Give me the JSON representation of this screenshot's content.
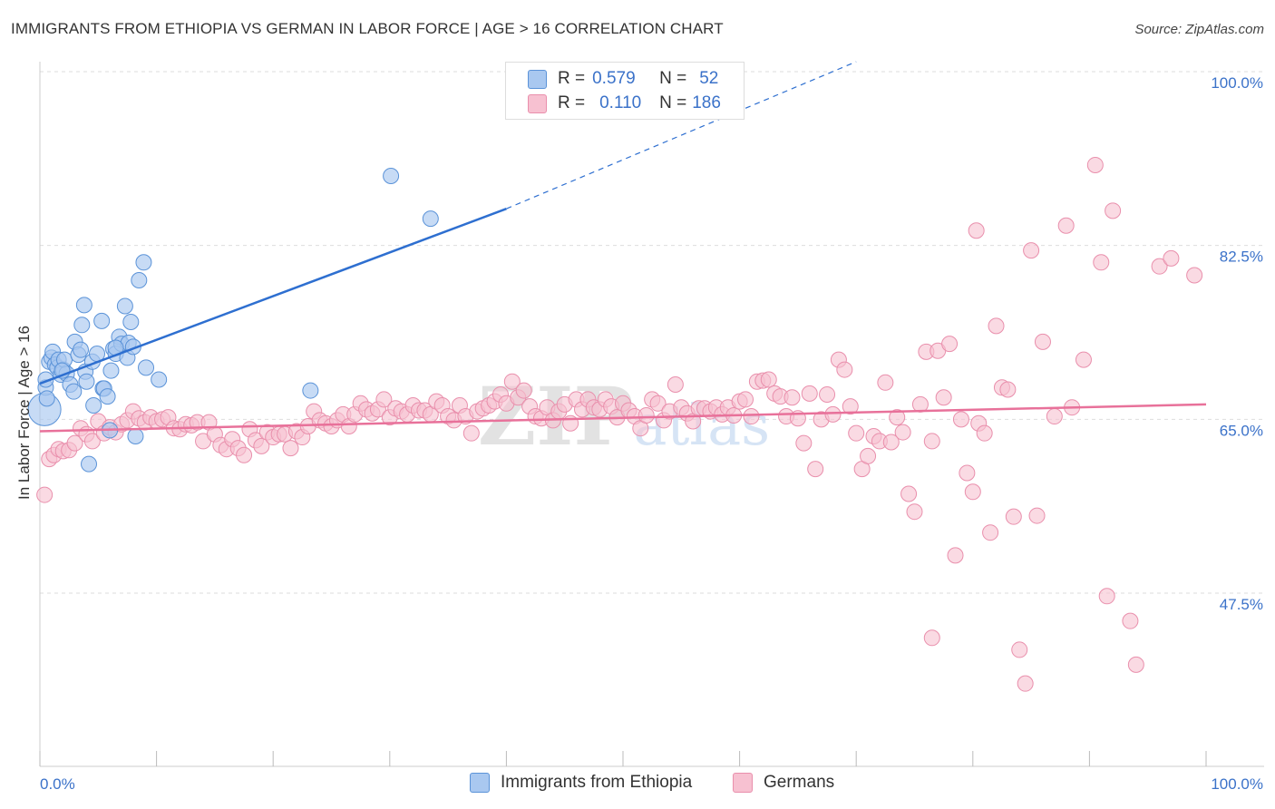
{
  "header": {
    "title": "IMMIGRANTS FROM ETHIOPIA VS GERMAN IN LABOR FORCE | AGE > 16 CORRELATION CHART",
    "source": "Source: ZipAtlas.com"
  },
  "legend": {
    "r_label": "R =",
    "n_label": "N =",
    "series": [
      {
        "r": "0.579",
        "n": "52"
      },
      {
        "r": "0.110",
        "n": "186"
      }
    ]
  },
  "watermark": "ZIPatlas",
  "colors": {
    "blue_fill": "#a9c8f0",
    "blue_stroke": "#5b93d8",
    "blue_line": "#2e6fd0",
    "pink_fill": "#f7c1d1",
    "pink_stroke": "#e98fac",
    "pink_line": "#e8719a",
    "tick_label": "#3b72c9",
    "grid": "#dddddd"
  },
  "chart_data": {
    "type": "scatter",
    "xlabel": "",
    "ylabel": "In Labor Force | Age > 16",
    "xlim": [
      0,
      100
    ],
    "ylim": [
      30,
      100
    ],
    "x_tick_labels": [
      "0.0%",
      "100.0%"
    ],
    "y_ticks": [
      47.5,
      65.0,
      82.5,
      100.0
    ],
    "y_tick_labels": [
      "47.5%",
      "65.0%",
      "82.5%",
      "100.0%"
    ],
    "grid": true,
    "legend_position": "top-center",
    "series": [
      {
        "name": "Immigrants from Ethiopia",
        "color": "#a9c8f0",
        "trend": {
          "x": [
            0,
            40
          ],
          "y": [
            68.6,
            86.2
          ],
          "dashed_to": [
            70,
            101.0
          ]
        },
        "points": [
          [
            0.4,
            66.0
          ],
          [
            0.5,
            68.2
          ],
          [
            0.5,
            69.0
          ],
          [
            0.6,
            67.1
          ],
          [
            0.8,
            70.8
          ],
          [
            1.0,
            71.2
          ],
          [
            1.1,
            71.8
          ],
          [
            1.3,
            70.5
          ],
          [
            1.5,
            70.2
          ],
          [
            1.6,
            71.0
          ],
          [
            1.8,
            69.5
          ],
          [
            2.0,
            70.0
          ],
          [
            2.1,
            71.0
          ],
          [
            2.3,
            69.6
          ],
          [
            2.6,
            68.5
          ],
          [
            2.9,
            67.8
          ],
          [
            3.0,
            72.8
          ],
          [
            3.3,
            71.5
          ],
          [
            3.5,
            72.0
          ],
          [
            3.6,
            74.5
          ],
          [
            3.8,
            76.5
          ],
          [
            3.9,
            69.8
          ],
          [
            4.2,
            60.5
          ],
          [
            4.5,
            70.8
          ],
          [
            4.6,
            66.4
          ],
          [
            4.9,
            71.6
          ],
          [
            5.3,
            74.9
          ],
          [
            5.4,
            68.1
          ],
          [
            5.5,
            68.1
          ],
          [
            5.8,
            67.3
          ],
          [
            6.0,
            63.9
          ],
          [
            6.1,
            69.9
          ],
          [
            6.3,
            72.1
          ],
          [
            6.5,
            71.6
          ],
          [
            6.8,
            73.3
          ],
          [
            7.0,
            72.6
          ],
          [
            7.3,
            76.4
          ],
          [
            7.5,
            71.2
          ],
          [
            7.6,
            72.7
          ],
          [
            7.8,
            74.8
          ],
          [
            8.0,
            72.3
          ],
          [
            8.2,
            63.3
          ],
          [
            8.5,
            79.0
          ],
          [
            8.9,
            80.8
          ],
          [
            9.1,
            70.2
          ],
          [
            10.2,
            69.0
          ],
          [
            23.2,
            67.9
          ],
          [
            30.1,
            89.5
          ],
          [
            33.5,
            85.2
          ],
          [
            6.5,
            72.2
          ],
          [
            4.0,
            68.8
          ],
          [
            1.9,
            69.9
          ]
        ]
      },
      {
        "name": "Germans",
        "color": "#f7c1d1",
        "trend": {
          "x": [
            0,
            100
          ],
          "y": [
            63.8,
            66.5
          ]
        },
        "points": [
          [
            0.4,
            57.4
          ],
          [
            0.8,
            61.0
          ],
          [
            1.2,
            61.4
          ],
          [
            1.6,
            62.0
          ],
          [
            2.0,
            61.8
          ],
          [
            2.5,
            61.9
          ],
          [
            3.0,
            62.6
          ],
          [
            3.5,
            64.1
          ],
          [
            4.0,
            63.5
          ],
          [
            4.5,
            62.8
          ],
          [
            5.0,
            64.8
          ],
          [
            5.5,
            63.6
          ],
          [
            6.0,
            64.2
          ],
          [
            6.5,
            63.7
          ],
          [
            7.0,
            64.5
          ],
          [
            7.5,
            64.9
          ],
          [
            8.0,
            65.8
          ],
          [
            8.5,
            65.1
          ],
          [
            9.0,
            64.7
          ],
          [
            9.5,
            65.2
          ],
          [
            10.0,
            64.8
          ],
          [
            10.5,
            65.0
          ],
          [
            11.0,
            65.2
          ],
          [
            11.5,
            64.1
          ],
          [
            12.0,
            64.0
          ],
          [
            12.5,
            64.5
          ],
          [
            13.0,
            64.4
          ],
          [
            13.5,
            64.7
          ],
          [
            14.0,
            62.8
          ],
          [
            14.5,
            64.7
          ],
          [
            15.0,
            63.5
          ],
          [
            15.5,
            62.4
          ],
          [
            16.0,
            62.0
          ],
          [
            16.5,
            63.0
          ],
          [
            17.0,
            62.1
          ],
          [
            17.5,
            61.4
          ],
          [
            18.0,
            64.0
          ],
          [
            18.5,
            62.9
          ],
          [
            19.0,
            62.3
          ],
          [
            19.5,
            63.7
          ],
          [
            20.0,
            63.2
          ],
          [
            20.5,
            63.5
          ],
          [
            21.0,
            63.5
          ],
          [
            21.5,
            62.1
          ],
          [
            22.0,
            63.8
          ],
          [
            22.5,
            63.2
          ],
          [
            23.0,
            64.3
          ],
          [
            23.5,
            65.8
          ],
          [
            24.0,
            64.9
          ],
          [
            24.5,
            64.6
          ],
          [
            25.0,
            64.3
          ],
          [
            25.5,
            64.9
          ],
          [
            26.0,
            65.5
          ],
          [
            26.5,
            64.3
          ],
          [
            27.0,
            65.5
          ],
          [
            27.5,
            66.6
          ],
          [
            28.0,
            66.0
          ],
          [
            28.5,
            65.6
          ],
          [
            29.0,
            66.0
          ],
          [
            29.5,
            67.0
          ],
          [
            30.0,
            65.2
          ],
          [
            30.5,
            66.1
          ],
          [
            31.0,
            65.8
          ],
          [
            31.5,
            65.5
          ],
          [
            32.0,
            66.4
          ],
          [
            32.5,
            65.9
          ],
          [
            33.0,
            65.9
          ],
          [
            33.5,
            65.5
          ],
          [
            34.0,
            66.8
          ],
          [
            34.5,
            66.4
          ],
          [
            35.0,
            65.3
          ],
          [
            35.5,
            64.9
          ],
          [
            36.0,
            66.4
          ],
          [
            36.5,
            65.3
          ],
          [
            37.0,
            63.6
          ],
          [
            37.5,
            65.8
          ],
          [
            38.0,
            66.1
          ],
          [
            38.5,
            66.4
          ],
          [
            39.0,
            66.8
          ],
          [
            39.5,
            67.5
          ],
          [
            40.0,
            66.6
          ],
          [
            40.5,
            68.8
          ],
          [
            41.0,
            67.2
          ],
          [
            41.5,
            67.9
          ],
          [
            42.0,
            66.3
          ],
          [
            42.5,
            65.3
          ],
          [
            43.0,
            65.1
          ],
          [
            43.5,
            66.2
          ],
          [
            44.0,
            64.9
          ],
          [
            44.5,
            65.8
          ],
          [
            45.0,
            66.5
          ],
          [
            45.5,
            64.6
          ],
          [
            46.0,
            67.0
          ],
          [
            46.5,
            66.0
          ],
          [
            47.0,
            67.0
          ],
          [
            47.5,
            66.2
          ],
          [
            48.0,
            66.0
          ],
          [
            48.5,
            67.0
          ],
          [
            49.0,
            66.3
          ],
          [
            49.5,
            65.2
          ],
          [
            50.0,
            66.6
          ],
          [
            50.5,
            65.9
          ],
          [
            51.0,
            65.3
          ],
          [
            51.5,
            64.1
          ],
          [
            52.0,
            65.4
          ],
          [
            52.5,
            67.0
          ],
          [
            53.0,
            66.6
          ],
          [
            53.5,
            64.9
          ],
          [
            54.0,
            65.8
          ],
          [
            54.5,
            68.5
          ],
          [
            55.0,
            66.2
          ],
          [
            55.5,
            65.6
          ],
          [
            56.0,
            64.8
          ],
          [
            56.5,
            66.1
          ],
          [
            57.0,
            66.1
          ],
          [
            57.5,
            65.8
          ],
          [
            58.0,
            66.2
          ],
          [
            58.5,
            65.5
          ],
          [
            59.0,
            66.2
          ],
          [
            59.5,
            65.4
          ],
          [
            60.0,
            66.8
          ],
          [
            60.5,
            67.0
          ],
          [
            61.0,
            65.3
          ],
          [
            61.5,
            68.8
          ],
          [
            62.0,
            68.9
          ],
          [
            62.5,
            69.0
          ],
          [
            63.0,
            67.6
          ],
          [
            63.5,
            67.3
          ],
          [
            64.0,
            65.3
          ],
          [
            64.5,
            67.2
          ],
          [
            65.0,
            65.1
          ],
          [
            65.5,
            62.6
          ],
          [
            66.0,
            67.6
          ],
          [
            66.5,
            60.0
          ],
          [
            67.0,
            65.0
          ],
          [
            67.5,
            67.5
          ],
          [
            68.0,
            65.5
          ],
          [
            68.5,
            71.0
          ],
          [
            69.0,
            70.0
          ],
          [
            69.5,
            66.3
          ],
          [
            70.0,
            63.6
          ],
          [
            70.5,
            60.0
          ],
          [
            71.0,
            61.3
          ],
          [
            71.5,
            63.3
          ],
          [
            72.0,
            62.8
          ],
          [
            72.5,
            68.7
          ],
          [
            73.0,
            62.7
          ],
          [
            73.5,
            65.2
          ],
          [
            74.0,
            63.7
          ],
          [
            74.5,
            57.5
          ],
          [
            75.0,
            55.7
          ],
          [
            75.5,
            66.5
          ],
          [
            76.0,
            71.8
          ],
          [
            76.5,
            62.8
          ],
          [
            77.0,
            71.9
          ],
          [
            77.5,
            67.2
          ],
          [
            78.0,
            72.6
          ],
          [
            78.5,
            51.3
          ],
          [
            79.0,
            65.0
          ],
          [
            79.5,
            59.6
          ],
          [
            80.0,
            57.7
          ],
          [
            80.5,
            64.6
          ],
          [
            81.0,
            63.6
          ],
          [
            81.5,
            53.6
          ],
          [
            82.0,
            74.4
          ],
          [
            82.5,
            68.2
          ],
          [
            83.0,
            68.0
          ],
          [
            83.5,
            55.2
          ],
          [
            84.0,
            41.8
          ],
          [
            84.5,
            38.4
          ],
          [
            85.0,
            82.0
          ],
          [
            85.5,
            55.3
          ],
          [
            86.0,
            72.8
          ],
          [
            87.0,
            65.3
          ],
          [
            88.0,
            84.5
          ],
          [
            88.5,
            66.2
          ],
          [
            89.5,
            71.0
          ],
          [
            90.5,
            90.6
          ],
          [
            91.0,
            80.8
          ],
          [
            91.5,
            47.2
          ],
          [
            92.0,
            86.0
          ],
          [
            93.5,
            44.7
          ],
          [
            94.0,
            40.3
          ],
          [
            96.0,
            80.4
          ],
          [
            97.0,
            81.2
          ],
          [
            99.0,
            79.5
          ],
          [
            76.5,
            43.0
          ],
          [
            80.3,
            84.0
          ]
        ]
      }
    ]
  },
  "bottom_legend": {
    "items": [
      "Immigrants from Ethiopia",
      "Germans"
    ]
  }
}
